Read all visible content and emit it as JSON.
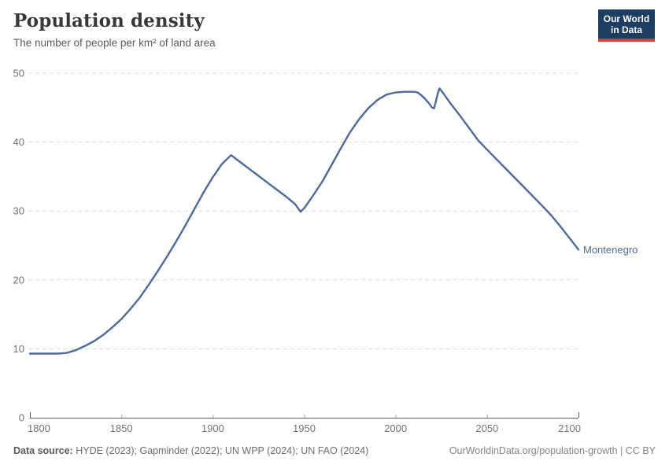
{
  "header": {
    "title": "Population density",
    "subtitle": "The number of people per km² of land area",
    "logo": {
      "line1": "Our World",
      "line2": "in Data"
    }
  },
  "chart_data": {
    "type": "line",
    "title": "Population density",
    "subtitle": "The number of people per km² of land area",
    "entity_label": "Montenegro",
    "xlim": [
      1800,
      2100
    ],
    "ylim": [
      0,
      50
    ],
    "x_ticks": [
      1800,
      1850,
      1900,
      1950,
      2000,
      2050,
      2100
    ],
    "y_ticks": [
      0,
      10,
      20,
      30,
      40,
      50
    ],
    "grid": "horizontal-dashed",
    "legend_position": "end-of-line",
    "series": [
      {
        "name": "Montenegro",
        "color": "#4c6a9c",
        "points": [
          [
            1800,
            9.3
          ],
          [
            1805,
            9.3
          ],
          [
            1810,
            9.3
          ],
          [
            1815,
            9.3
          ],
          [
            1820,
            9.4
          ],
          [
            1825,
            9.8
          ],
          [
            1830,
            10.4
          ],
          [
            1835,
            11.1
          ],
          [
            1840,
            12.0
          ],
          [
            1845,
            13.1
          ],
          [
            1850,
            14.3
          ],
          [
            1855,
            15.8
          ],
          [
            1860,
            17.4
          ],
          [
            1865,
            19.3
          ],
          [
            1870,
            21.3
          ],
          [
            1875,
            23.4
          ],
          [
            1880,
            25.6
          ],
          [
            1885,
            27.9
          ],
          [
            1890,
            30.3
          ],
          [
            1895,
            32.7
          ],
          [
            1900,
            34.9
          ],
          [
            1905,
            36.8
          ],
          [
            1910,
            38.1
          ],
          [
            1915,
            37.1
          ],
          [
            1920,
            36.1
          ],
          [
            1925,
            35.1
          ],
          [
            1930,
            34.1
          ],
          [
            1935,
            33.1
          ],
          [
            1940,
            32.1
          ],
          [
            1945,
            31.0
          ],
          [
            1948,
            29.9
          ],
          [
            1950,
            30.4
          ],
          [
            1955,
            32.3
          ],
          [
            1960,
            34.3
          ],
          [
            1965,
            36.7
          ],
          [
            1970,
            39.1
          ],
          [
            1975,
            41.4
          ],
          [
            1980,
            43.3
          ],
          [
            1985,
            44.9
          ],
          [
            1990,
            46.1
          ],
          [
            1995,
            46.9
          ],
          [
            2000,
            47.2
          ],
          [
            2005,
            47.3
          ],
          [
            2010,
            47.3
          ],
          [
            2012,
            47.2
          ],
          [
            2014,
            46.8
          ],
          [
            2016,
            46.3
          ],
          [
            2018,
            45.7
          ],
          [
            2020,
            45.0
          ],
          [
            2021,
            44.9
          ],
          [
            2022,
            45.9
          ],
          [
            2023,
            47.0
          ],
          [
            2024,
            47.8
          ],
          [
            2026,
            47.1
          ],
          [
            2030,
            45.6
          ],
          [
            2035,
            43.9
          ],
          [
            2040,
            42.1
          ],
          [
            2045,
            40.3
          ],
          [
            2050,
            38.9
          ],
          [
            2060,
            36.2
          ],
          [
            2070,
            33.5
          ],
          [
            2080,
            30.8
          ],
          [
            2085,
            29.4
          ],
          [
            2090,
            27.8
          ],
          [
            2095,
            26.1
          ],
          [
            2100,
            24.4
          ]
        ]
      }
    ]
  },
  "footer": {
    "source_label": "Data source:",
    "source_text": " HYDE (2023); Gapminder (2022); UN WPP (2024); UN FAO (2024)",
    "link_text": "OurWorldinData.org/population-growth | CC BY"
  },
  "colors": {
    "line": "#4c6a9c",
    "logo_background": "#1d3d63",
    "logo_accent": "#dd3b3f",
    "gridline": "#dcdcdc",
    "axis": "#5b5b5b",
    "tick_label": "#737373"
  }
}
